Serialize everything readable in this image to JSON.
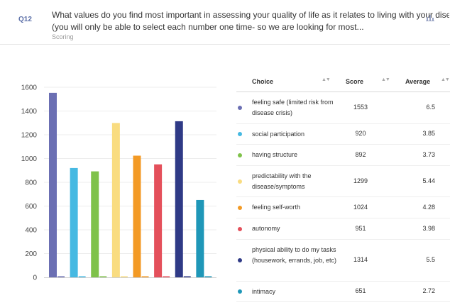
{
  "question": {
    "number": "Q12",
    "text_line1": "What values do you find most important in assessing your quality of life as it relates to living with your disease",
    "text_line2": "(you will only be able to select each number one time- so we are looking for most...",
    "subtitle": "Scoring"
  },
  "icons": {
    "chart_toggle": "bar-chart-icon"
  },
  "table": {
    "headers": {
      "choice": "Choice",
      "score": "Score",
      "average": "Average"
    },
    "rows": [
      {
        "choice": "feeling safe (limited risk from disease crisis)",
        "score": "1553",
        "average": "6.5"
      },
      {
        "choice": "social participation",
        "score": "920",
        "average": "3.85"
      },
      {
        "choice": "having structure",
        "score": "892",
        "average": "3.73"
      },
      {
        "choice": "predictability with the disease/symptoms",
        "score": "1299",
        "average": "5.44"
      },
      {
        "choice": "feeling self-worth",
        "score": "1024",
        "average": "4.28"
      },
      {
        "choice": "autonomy",
        "score": "951",
        "average": "3.98"
      },
      {
        "choice": "physical ability to do my tasks (housework, errands, job, etc)",
        "score": "1314",
        "average": "5.5"
      },
      {
        "choice": "intimacy",
        "score": "651",
        "average": "2.72"
      }
    ]
  },
  "chart_data": {
    "type": "bar",
    "categories": [
      "feeling safe (limited risk from disease crisis)",
      "social participation",
      "having structure",
      "predictability with the disease/symptoms",
      "feeling self-worth",
      "autonomy",
      "physical ability to do my tasks (housework, errands, job, etc)",
      "intimacy"
    ],
    "series": [
      {
        "values": [
          1553,
          920,
          892,
          1299,
          1024,
          951,
          1314,
          651
        ]
      },
      {
        "values": [
          6.5,
          3.85,
          3.73,
          5.44,
          4.28,
          3.98,
          5.5,
          2.72
        ]
      }
    ],
    "colors": [
      "#6b6fb3",
      "#46b9e2",
      "#7fc24a",
      "#f9dc80",
      "#f39a25",
      "#e4505b",
      "#2f3a86",
      "#1f97b8"
    ],
    "ylim": [
      0,
      1600
    ],
    "yticks": [
      "0",
      "200",
      "400",
      "600",
      "800",
      "1000",
      "1200",
      "1400",
      "1600"
    ],
    "grid": true
  }
}
